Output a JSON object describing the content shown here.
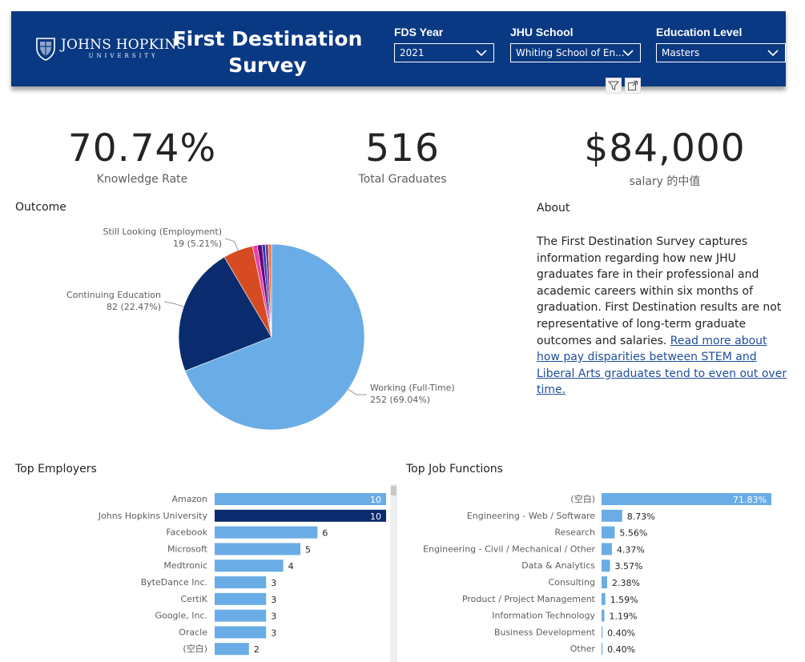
{
  "header": {
    "logo_line1": "JOHNS HOPKINS",
    "logo_line2": "UNIVERSITY",
    "title_line1": "First Destination",
    "title_line2": "Survey"
  },
  "filters": [
    {
      "label": "FDS Year",
      "value": "2021"
    },
    {
      "label": "JHU School",
      "value": "Whiting School of En..."
    },
    {
      "label": "Education Level",
      "value": "Masters"
    }
  ],
  "visual_icons": [
    "filter-icon",
    "focus-mode-icon"
  ],
  "kpis": [
    {
      "value": "70.74%",
      "label": "Knowledge Rate"
    },
    {
      "value": "516",
      "label": "Total Graduates"
    },
    {
      "value": "$84,000",
      "label": "salary 的中值"
    }
  ],
  "about": {
    "title": "About",
    "text": "The First Destination Survey captures information regarding how new JHU graduates fare in their professional and academic careers within six months of graduation. First Destination results are not representative of long-term graduate outcomes and salaries.",
    "link_text": "Read more about how pay disparities between STEM and Liberal Arts graduates tend to even out over time."
  },
  "chart_data": [
    {
      "type": "pie",
      "title": "Outcome",
      "slices": [
        {
          "name": "Working (Full-Time)",
          "value": 252,
          "label": "252 (69.04%)",
          "color": "#6aace6"
        },
        {
          "name": "Continuing Education",
          "value": 82,
          "label": "82 (22.47%)",
          "color": "#0a2c6e"
        },
        {
          "name": "Still Looking (Employment)",
          "value": 19,
          "label": "19 (5.21%)",
          "color": "#d64b22"
        },
        {
          "name": "",
          "value": 3,
          "label": "",
          "color": "#e044a7"
        },
        {
          "name": "",
          "value": 3,
          "label": "",
          "color": "#6b007b"
        },
        {
          "name": "",
          "value": 2,
          "label": "",
          "color": "#1f3fb0"
        },
        {
          "name": "",
          "value": 2,
          "label": "",
          "color": "#8b3a8b"
        },
        {
          "name": "",
          "value": 2,
          "label": "",
          "color": "#e87a3a"
        }
      ]
    },
    {
      "type": "bar",
      "orientation": "horizontal",
      "title": "Top Employers",
      "categories": [
        "Amazon",
        "Johns Hopkins University",
        "Facebook",
        "Microsoft",
        "Medtronic",
        "ByteDance Inc.",
        "CertiK",
        "Google, Inc.",
        "Oracle",
        "(空白)"
      ],
      "values": [
        10,
        10,
        6,
        5,
        4,
        3,
        3,
        3,
        3,
        2
      ],
      "highlight_index": 1,
      "color": "#6aace6",
      "highlight_color": "#0a2c6e",
      "xlim": [
        0,
        10
      ]
    },
    {
      "type": "bar",
      "orientation": "horizontal",
      "title": "Top Job Functions",
      "categories": [
        "(空白)",
        "Engineering - Web / Software",
        "Research",
        "Engineering - Civil / Mechanical / Other",
        "Data & Analytics",
        "Consulting",
        "Product / Project Management",
        "Information Technology",
        "Business Development",
        "Other"
      ],
      "values": [
        71.83,
        8.73,
        5.56,
        4.37,
        3.57,
        2.38,
        1.59,
        1.19,
        0.4,
        0.4
      ],
      "value_labels": [
        "71.83%",
        "8.73%",
        "5.56%",
        "4.37%",
        "3.57%",
        "2.38%",
        "1.59%",
        "1.19%",
        "0.40%",
        "0.40%"
      ],
      "color": "#6aace6",
      "xlim": [
        0,
        71.83
      ]
    }
  ]
}
